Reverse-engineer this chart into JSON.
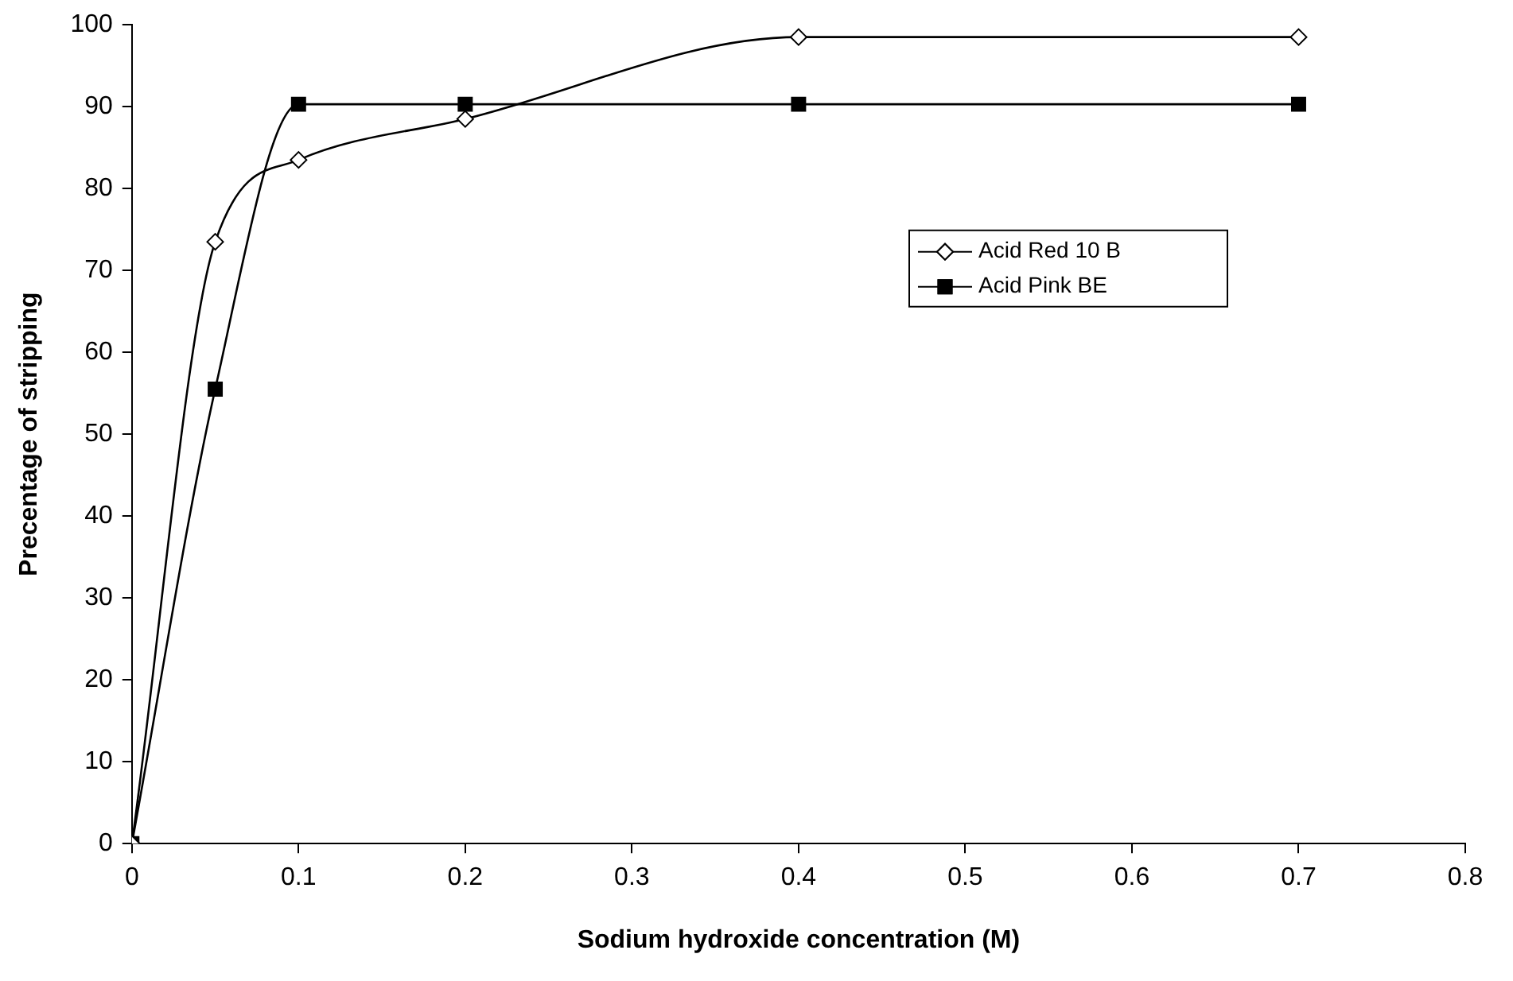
{
  "chart_data": {
    "type": "line",
    "xlabel": "Sodium hydroxide concentration (M)",
    "ylabel": "Precentage of stripping",
    "x": [
      0,
      0.05,
      0.1,
      0.2,
      0.4,
      0.7
    ],
    "series": [
      {
        "name": "Acid Red 10 B",
        "color": "#000000",
        "marker": "diamond",
        "values": [
          0,
          73.5,
          83.5,
          88.5,
          98.5,
          98.5
        ]
      },
      {
        "name": "Acid Pink BE",
        "color": "#000000",
        "marker": "square",
        "values": [
          0,
          55.5,
          90.3,
          90.3,
          90.3,
          90.3
        ]
      }
    ],
    "xlim": [
      0,
      0.8
    ],
    "xticks": [
      0,
      0.1,
      0.2,
      0.3,
      0.4,
      0.5,
      0.6,
      0.7,
      0.8
    ],
    "ylim": [
      0,
      100
    ],
    "yticks": [
      0,
      10,
      20,
      30,
      40,
      50,
      60,
      70,
      80,
      90,
      100
    ],
    "grid": false,
    "legend": "right"
  }
}
